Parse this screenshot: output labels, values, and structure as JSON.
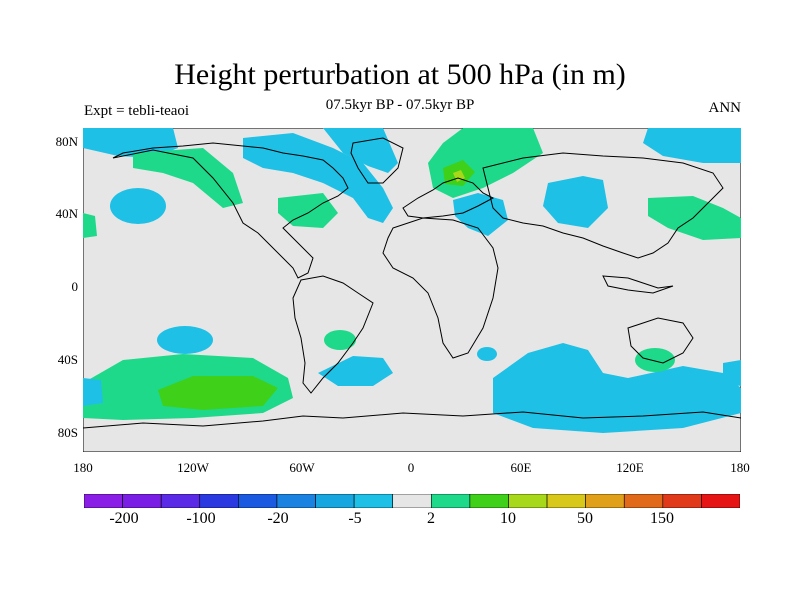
{
  "title": "Height perturbation at 500 hPa (in m)",
  "subtitle_left": "Expt = tebli-teaoi",
  "subtitle_center": "07.5kyr BP - 07.5kyr BP",
  "subtitle_right": "ANN",
  "chart_data": {
    "type": "map",
    "y_ticks": [
      "80N",
      "40N",
      "0",
      "40S",
      "80S"
    ],
    "x_ticks": [
      "180",
      "120W",
      "60W",
      "0",
      "60E",
      "120E",
      "180"
    ],
    "colorbar": {
      "colors": [
        "#8a1ee6",
        "#7a1ee6",
        "#5a2ae6",
        "#2a3ae0",
        "#1a5ae0",
        "#1a82e0",
        "#18a6e0",
        "#1ec0e6",
        "#e6e6e6",
        "#1ed98a",
        "#3fd01a",
        "#a8d81a",
        "#d8c81a",
        "#e0a01a",
        "#e06a1a",
        "#e03a1a",
        "#e61414"
      ],
      "labels": [
        "-200",
        "-100",
        "-20",
        "-5",
        "2",
        "10",
        "50",
        "150"
      ]
    },
    "background": "#e6e6e6",
    "cyan": "#1ec0e6",
    "green": "#1ed98a",
    "bright_green": "#3fd01a",
    "yellow_green": "#a8d81a"
  }
}
